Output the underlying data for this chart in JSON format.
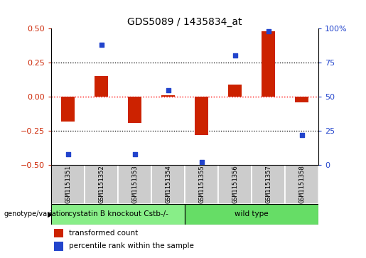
{
  "title": "GDS5089 / 1435834_at",
  "samples": [
    "GSM1151351",
    "GSM1151352",
    "GSM1151353",
    "GSM1151354",
    "GSM1151355",
    "GSM1151356",
    "GSM1151357",
    "GSM1151358"
  ],
  "transformed_count": [
    -0.18,
    0.15,
    -0.19,
    0.01,
    -0.28,
    0.09,
    0.48,
    -0.04
  ],
  "percentile_rank": [
    8,
    88,
    8,
    55,
    2,
    80,
    98,
    22
  ],
  "ylim_left": [
    -0.5,
    0.5
  ],
  "ylim_right": [
    0,
    100
  ],
  "yticks_left": [
    -0.5,
    -0.25,
    0.0,
    0.25,
    0.5
  ],
  "yticks_right": [
    0,
    25,
    50,
    75,
    100
  ],
  "hlines_dotted": [
    0.25,
    -0.25
  ],
  "hline_red": 0.0,
  "bar_color": "#cc2200",
  "dot_color": "#2244cc",
  "groups": [
    {
      "label": "cystatin B knockout Cstb-/-",
      "start": 0,
      "end": 3,
      "color": "#88ee88"
    },
    {
      "label": "wild type",
      "start": 4,
      "end": 7,
      "color": "#66dd66"
    }
  ],
  "group_row_label": "genotype/variation",
  "legend_items": [
    {
      "label": "transformed count",
      "color": "#cc2200"
    },
    {
      "label": "percentile rank within the sample",
      "color": "#2244cc"
    }
  ],
  "bg_color": "#ffffff",
  "tick_color_left": "#cc2200",
  "tick_color_right": "#2244cc",
  "sample_box_color": "#cccccc",
  "bar_width": 0.4
}
